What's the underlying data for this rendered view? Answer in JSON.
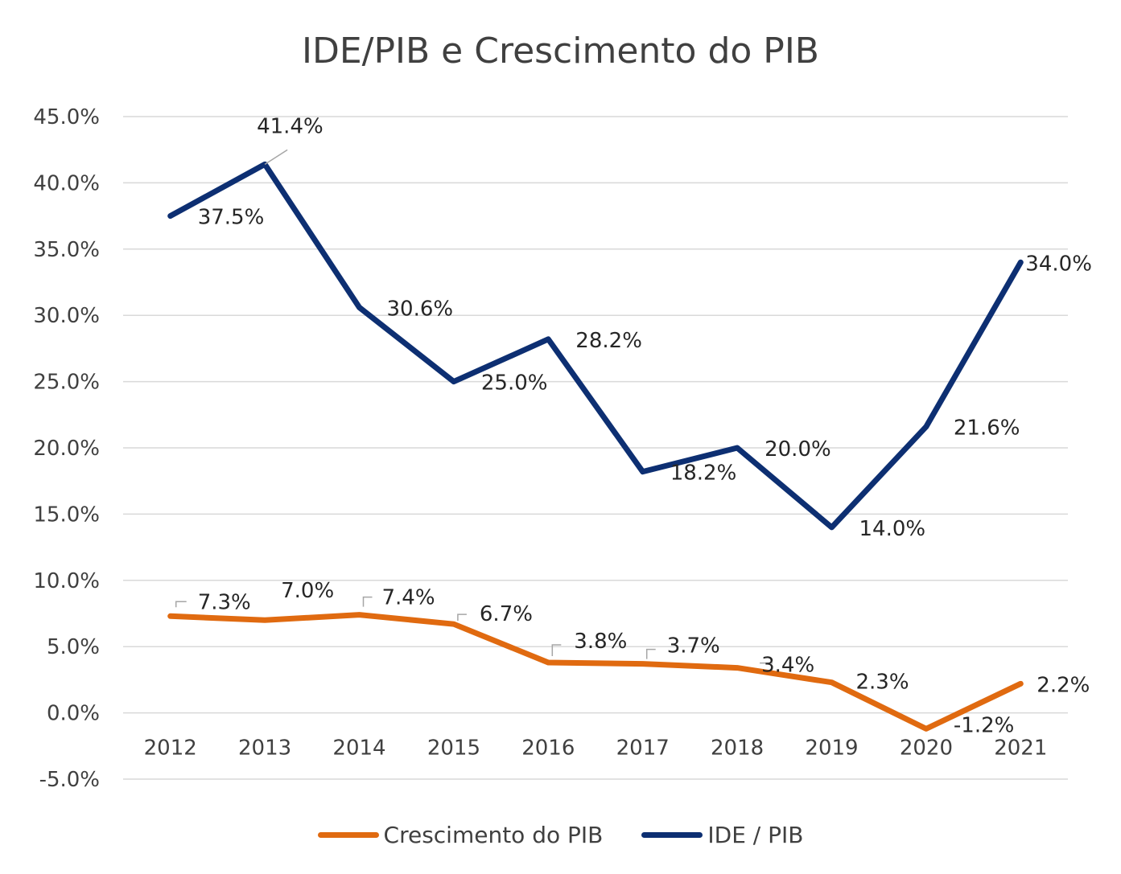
{
  "chart_data": {
    "type": "line",
    "title": "IDE/PIB e Crescimento do PIB",
    "categories": [
      "2012",
      "2013",
      "2014",
      "2015",
      "2016",
      "2017",
      "2018",
      "2019",
      "2020",
      "2021"
    ],
    "y_ticks": [
      "-5.0%",
      "0.0%",
      "5.0%",
      "10.0%",
      "15.0%",
      "20.0%",
      "25.0%",
      "30.0%",
      "35.0%",
      "40.0%",
      "45.0%"
    ],
    "ylim": [
      -5,
      45
    ],
    "ystep": 5,
    "grid": true,
    "legend_position": "bottom",
    "series": [
      {
        "name": "IDE / PIB",
        "color": "#0d2f72",
        "values": [
          37.5,
          41.4,
          30.6,
          25.0,
          28.2,
          18.2,
          20.0,
          14.0,
          21.6,
          34.0
        ],
        "labels": [
          "37.5%",
          "41.4%",
          "30.6%",
          "25.0%",
          "28.2%",
          "18.2%",
          "20.0%",
          "14.0%",
          "21.6%",
          "34.0%"
        ]
      },
      {
        "name": "Crescimento do PIB",
        "color": "#e06a10",
        "values": [
          7.3,
          7.0,
          7.4,
          6.7,
          3.8,
          3.7,
          3.4,
          2.3,
          -1.2,
          2.2
        ],
        "labels": [
          "7.3%",
          "7.0%",
          "7.4%",
          "6.7%",
          "3.8%",
          "3.7%",
          "3.4%",
          "2.3%",
          "-1.2%",
          "2.2%"
        ]
      }
    ],
    "legend": [
      "Crescimento do PIB",
      "IDE / PIB"
    ]
  }
}
